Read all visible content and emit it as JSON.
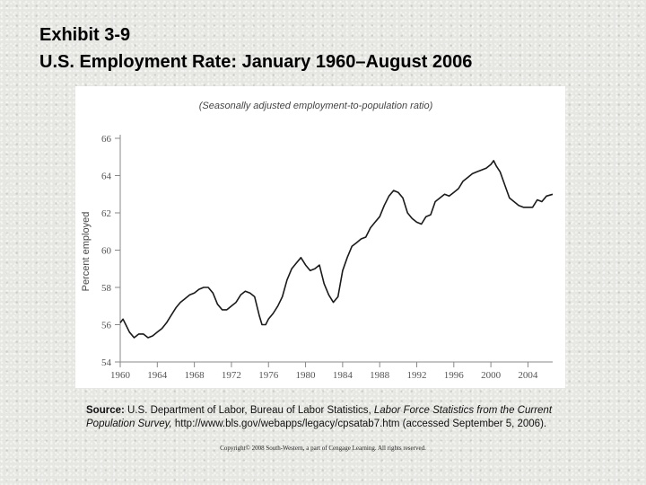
{
  "header": {
    "title_line1": "Exhibit 3-9",
    "title_line2": "U.S. Employment Rate: January 1960–August 2006"
  },
  "chart_data": {
    "type": "line",
    "subtitle": "(Seasonally adjusted employment-to-population ratio)",
    "xlabel": "",
    "ylabel": "Percent employed",
    "xlim": [
      1960,
      2006.67
    ],
    "ylim": [
      54,
      66
    ],
    "x_ticks": [
      "1960",
      "1964",
      "1968",
      "1972",
      "1976",
      "1980",
      "1984",
      "1988",
      "1992",
      "1996",
      "2000",
      "2004"
    ],
    "y_ticks": [
      "54",
      "56",
      "58",
      "60",
      "62",
      "64",
      "66"
    ],
    "grid": false,
    "line_color": "#1a1a1a",
    "series": [
      {
        "x": [
          1960.0,
          1960.3,
          1960.6,
          1961.0,
          1961.5,
          1962.0,
          1962.5,
          1963.0,
          1963.5,
          1964.0,
          1964.5,
          1965.0,
          1965.5,
          1966.0,
          1966.5,
          1967.0,
          1967.5,
          1968.0,
          1968.5,
          1969.0,
          1969.5,
          1970.0,
          1970.5,
          1971.0,
          1971.5,
          1972.0,
          1972.5,
          1973.0,
          1973.5,
          1974.0,
          1974.5,
          1975.0,
          1975.3,
          1975.7,
          1976.0,
          1976.5,
          1977.0,
          1977.5,
          1978.0,
          1978.5,
          1979.0,
          1979.5,
          1980.0,
          1980.5,
          1981.0,
          1981.5,
          1982.0,
          1982.5,
          1983.0,
          1983.5,
          1984.0,
          1984.5,
          1985.0,
          1985.5,
          1986.0,
          1986.5,
          1987.0,
          1987.5,
          1988.0,
          1988.5,
          1989.0,
          1989.5,
          1990.0,
          1990.5,
          1991.0,
          1991.5,
          1992.0,
          1992.5,
          1993.0,
          1993.5,
          1994.0,
          1994.5,
          1995.0,
          1995.5,
          1996.0,
          1996.5,
          1997.0,
          1997.5,
          1998.0,
          1998.5,
          1999.0,
          1999.5,
          2000.0,
          2000.3,
          2000.6,
          2001.0,
          2001.5,
          2002.0,
          2002.5,
          2003.0,
          2003.5,
          2004.0,
          2004.5,
          2005.0,
          2005.5,
          2006.0,
          2006.67
        ],
        "values": [
          56.1,
          56.3,
          56.0,
          55.6,
          55.3,
          55.5,
          55.5,
          55.3,
          55.4,
          55.6,
          55.8,
          56.1,
          56.5,
          56.9,
          57.2,
          57.4,
          57.6,
          57.7,
          57.9,
          58.0,
          58.0,
          57.7,
          57.1,
          56.8,
          56.8,
          57.0,
          57.2,
          57.6,
          57.8,
          57.7,
          57.5,
          56.5,
          56.0,
          56.0,
          56.3,
          56.6,
          57.0,
          57.5,
          58.4,
          59.0,
          59.3,
          59.6,
          59.2,
          58.9,
          59.0,
          59.2,
          58.2,
          57.6,
          57.2,
          57.5,
          58.9,
          59.6,
          60.2,
          60.4,
          60.6,
          60.7,
          61.2,
          61.5,
          61.8,
          62.4,
          62.9,
          63.2,
          63.1,
          62.8,
          62.0,
          61.7,
          61.5,
          61.4,
          61.8,
          61.9,
          62.6,
          62.8,
          63.0,
          62.9,
          63.1,
          63.3,
          63.7,
          63.9,
          64.1,
          64.2,
          64.3,
          64.4,
          64.6,
          64.8,
          64.5,
          64.2,
          63.5,
          62.8,
          62.6,
          62.4,
          62.3,
          62.3,
          62.3,
          62.7,
          62.6,
          62.9,
          63.0
        ]
      }
    ]
  },
  "source": {
    "label": "Source:",
    "text_part1": " U.S. Department of Labor, Bureau of Labor Statistics, ",
    "title_italic": "Labor Force Statistics from the Current Population Survey,",
    "text_part2": " http://www.bls.gov/webapps/legacy/cpsatab7.htm (accessed September 5, 2006)."
  },
  "copyright": "Copyright© 2008 South-Western, a part of Cengage Learning. All rights reserved."
}
